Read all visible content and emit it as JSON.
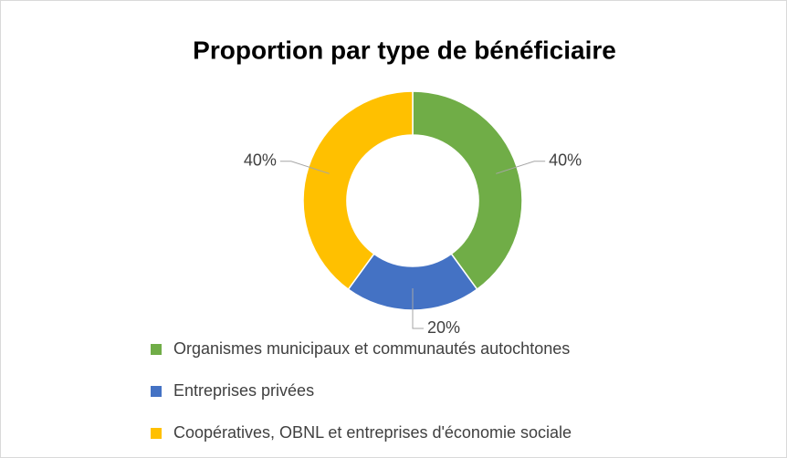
{
  "chart_data": {
    "type": "donut",
    "title": "Proportion par type de bénéficiaire",
    "categories": [
      "Organismes municipaux et communautés autochtones",
      "Entreprises privées",
      "Coopératives, OBNL et entreprises d'économie sociale"
    ],
    "values": [
      40,
      20,
      40
    ],
    "value_labels": [
      "40%",
      "20%",
      "40%"
    ],
    "colors": [
      "#70ad47",
      "#4472c4",
      "#ffc000"
    ]
  }
}
